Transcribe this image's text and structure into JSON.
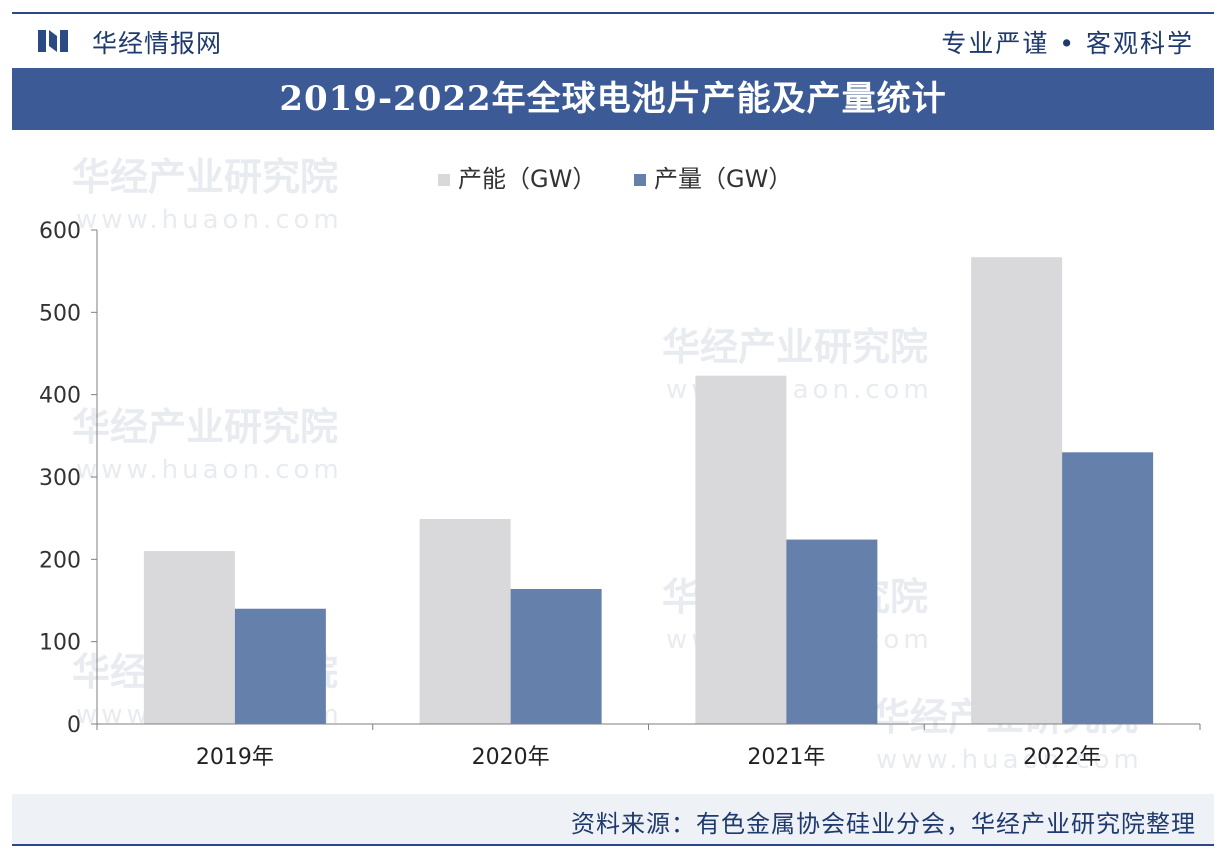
{
  "header": {
    "brand": "华经情报网",
    "slogan": "专业严谨 • 客观科学"
  },
  "title": "2019-2022年全球电池片产能及产量统计",
  "footer": {
    "source": "资料来源：有色金属协会硅业分会，华经产业研究院整理"
  },
  "watermark": {
    "cn": "华经产业研究院",
    "url": "www.huaon.com"
  },
  "colors": {
    "header_blue": "#3c5a96",
    "capacity": "#d9d9db",
    "output": "#6580ab",
    "text_dark": "#1f3a6e"
  },
  "chart_data": {
    "type": "bar",
    "categories": [
      "2019年",
      "2020年",
      "2021年",
      "2022年"
    ],
    "series": [
      {
        "name": "产能（GW）",
        "values": [
          210,
          249,
          423,
          567
        ]
      },
      {
        "name": "产量（GW）",
        "values": [
          140,
          164,
          224,
          330
        ]
      }
    ],
    "ylim": [
      0,
      600
    ],
    "yticks": [
      0,
      100,
      200,
      300,
      400,
      500,
      600
    ],
    "legend": "top-center",
    "grid": false
  }
}
